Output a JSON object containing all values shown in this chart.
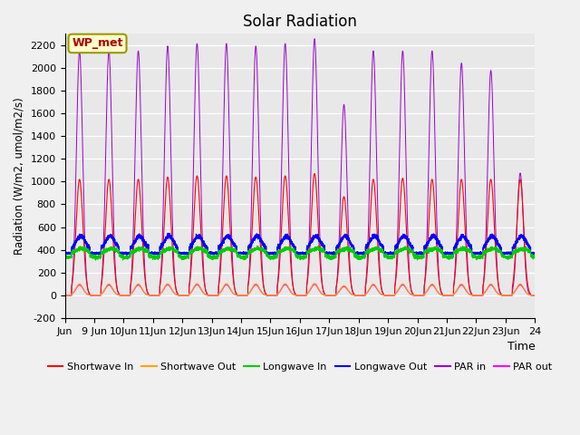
{
  "title": "Solar Radiation",
  "ylabel": "Radiation (W/m2, umol/m2/s)",
  "xlabel": "Time",
  "ylim": [
    -200,
    2300
  ],
  "yticks": [
    -200,
    0,
    200,
    400,
    600,
    800,
    1000,
    1200,
    1400,
    1600,
    1800,
    2000,
    2200
  ],
  "annotation": "WP_met",
  "colors": {
    "shortwave_in": "#ff0000",
    "shortwave_out": "#ffa500",
    "longwave_in": "#00cc00",
    "longwave_out": "#0000ff",
    "par_in": "#9900cc",
    "par_out": "#ff00ff"
  },
  "legend_labels": [
    "Shortwave In",
    "Shortwave Out",
    "Longwave In",
    "Longwave Out",
    "PAR in",
    "PAR out"
  ],
  "x_start": 8.0,
  "x_end": 24.0,
  "xtick_positions": [
    8,
    9,
    10,
    11,
    12,
    13,
    14,
    15,
    16,
    17,
    18,
    19,
    20,
    21,
    22,
    23,
    24
  ],
  "xtick_labels": [
    "Jun",
    "9 Jun",
    "10Jun",
    "11Jun",
    "12Jun",
    "13Jun",
    "14Jun",
    "15Jun",
    "16Jun",
    "17Jun",
    "18Jun",
    "19Jun",
    "20Jun",
    "21Jun",
    "22Jun",
    "23Jun",
    "24"
  ],
  "plot_bg": "#e8e8e8",
  "fig_bg": "#f0f0f0"
}
